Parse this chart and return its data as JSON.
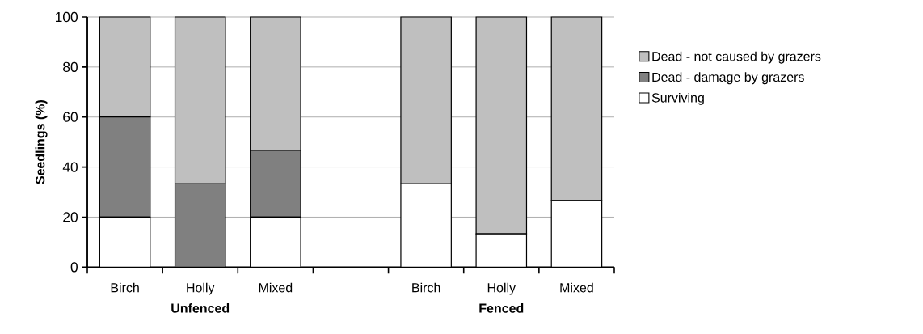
{
  "chart_data": {
    "type": "bar",
    "stacked": true,
    "ylabel": "Seedlings (%)",
    "categories": [
      "Birch",
      "Holly",
      "Mixed",
      null,
      "Birch",
      "Holly",
      "Mixed"
    ],
    "series": [
      {
        "name": "Surviving",
        "color": "#ffffff",
        "values": [
          20,
          0,
          20,
          null,
          33.3,
          13.3,
          26.7
        ]
      },
      {
        "name": "Dead - damage by grazers",
        "color": "#808080",
        "values": [
          40,
          33.3,
          26.7,
          null,
          0,
          0,
          0
        ]
      },
      {
        "name": "Dead - not caused by grazers",
        "color": "#bfbfbf",
        "values": [
          40,
          66.7,
          53.3,
          null,
          66.7,
          86.7,
          73.3
        ]
      }
    ],
    "annotations": [
      "Unfenced",
      "Fenced"
    ],
    "ylim": [
      0,
      100
    ],
    "yticks": [
      0,
      20,
      40,
      60,
      80,
      100
    ],
    "grid": "y",
    "legend": "right"
  }
}
